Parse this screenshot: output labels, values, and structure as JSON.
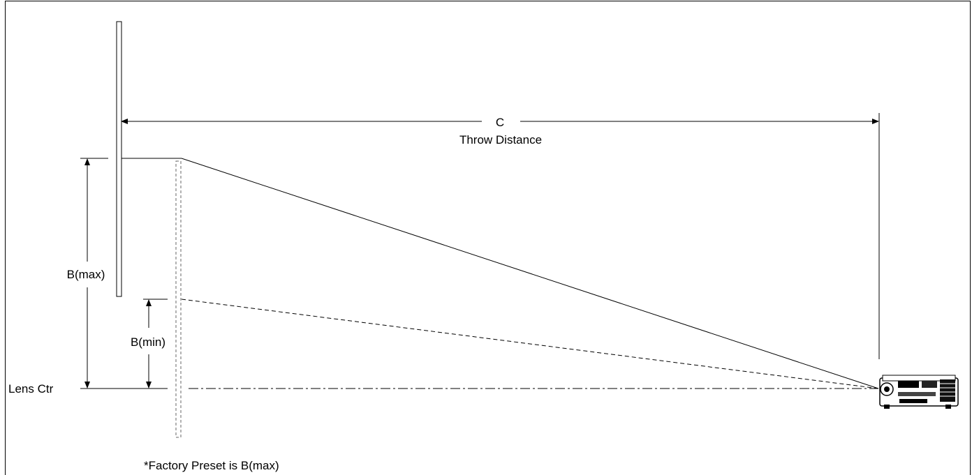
{
  "labels": {
    "c": "C",
    "throw_distance": "Throw Distance",
    "b_max": "B(max)",
    "b_min": "B(min)",
    "lens_ctr": "Lens Ctr",
    "factory_preset": "*Factory Preset is B(max)"
  },
  "icons": {
    "projector": "projector-icon"
  },
  "colors": {
    "line": "#000000",
    "dashed_screen": "#888888",
    "background": "#ffffff"
  }
}
